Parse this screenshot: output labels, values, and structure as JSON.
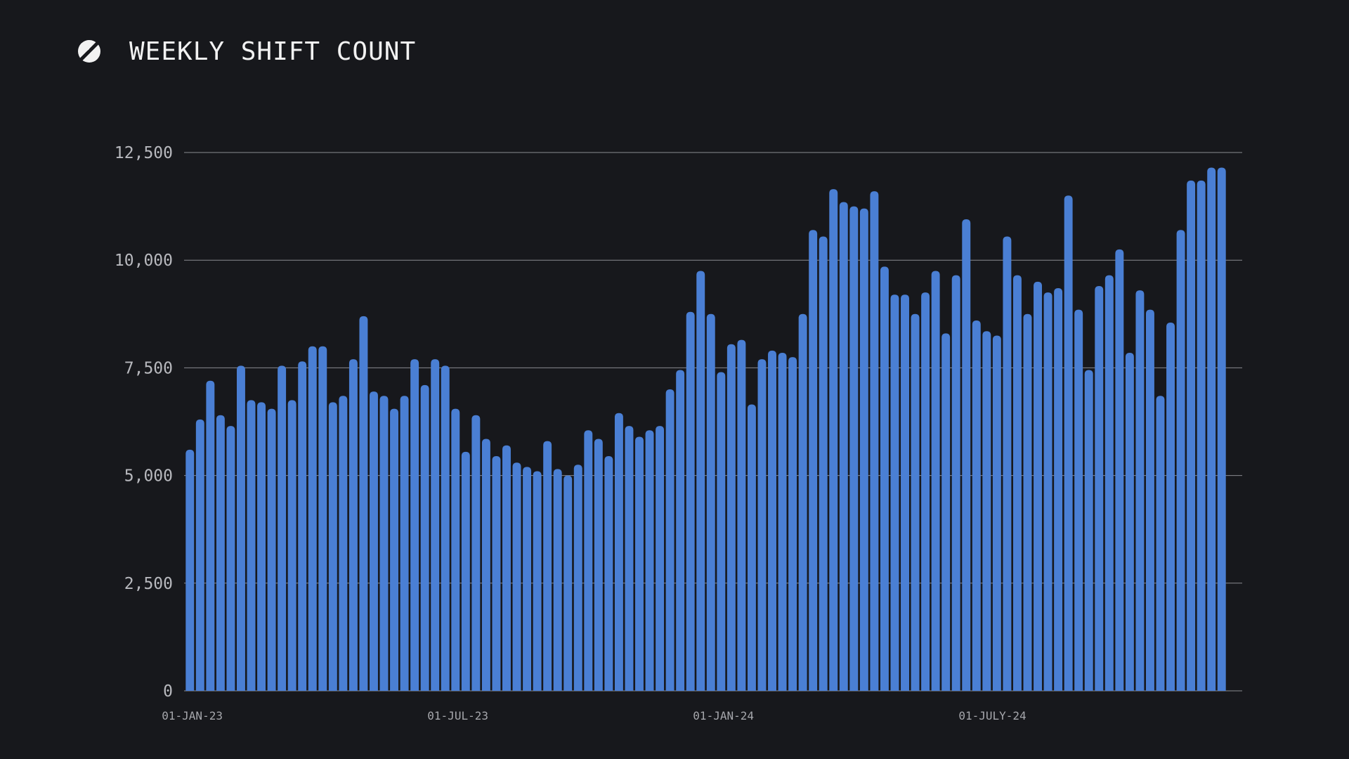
{
  "header": {
    "title": "WEEKLY SHIFT COUNT",
    "logo_icon": "brand-s-logo-icon"
  },
  "colors": {
    "background": "#17181c",
    "bar": "#4a7fd4",
    "grid": "#8a8b90",
    "text": "#f2f2f2"
  },
  "chart_data": {
    "type": "bar",
    "title": "WEEKLY SHIFT COUNT",
    "xlabel": "",
    "ylabel": "",
    "ylim": [
      0,
      12500
    ],
    "yticks": [
      0,
      2500,
      5000,
      7500,
      10000,
      12500
    ],
    "ytick_labels": [
      "0",
      "2,500",
      "5,000",
      "7,500",
      "10,000",
      "12,500"
    ],
    "xtick_labels": [
      {
        "label": "01-JAN-23",
        "index": 0
      },
      {
        "label": "01-JUL-23",
        "index": 26
      },
      {
        "label": "01-JAN-24",
        "index": 52
      },
      {
        "label": "01-JULY-24",
        "index": 78
      }
    ],
    "grid": true,
    "values": [
      5600,
      6300,
      7200,
      6400,
      6150,
      7550,
      6750,
      6700,
      6550,
      7550,
      6750,
      7650,
      8000,
      8000,
      6700,
      6850,
      7700,
      8700,
      6950,
      6850,
      6550,
      6850,
      7700,
      7100,
      7700,
      7550,
      6550,
      5550,
      6400,
      5850,
      5450,
      5700,
      5300,
      5200,
      5100,
      5800,
      5150,
      5000,
      5250,
      6050,
      5850,
      5450,
      6450,
      6150,
      5900,
      6050,
      6150,
      7000,
      7450,
      8800,
      9750,
      8750,
      7400,
      8050,
      8150,
      6650,
      7700,
      7900,
      7850,
      7750,
      8750,
      10700,
      10550,
      11650,
      11350,
      11250,
      11200,
      11600,
      9850,
      9200,
      9200,
      8750,
      9250,
      9750,
      8300,
      9650,
      10950,
      8600,
      8350,
      8250,
      10550,
      9650,
      8750,
      9500,
      9250,
      9350,
      11500,
      8850,
      7450,
      9400,
      9650,
      10250,
      7850,
      9300,
      8850,
      6850,
      8550,
      10700,
      11850,
      11850,
      12150,
      12150
    ]
  }
}
